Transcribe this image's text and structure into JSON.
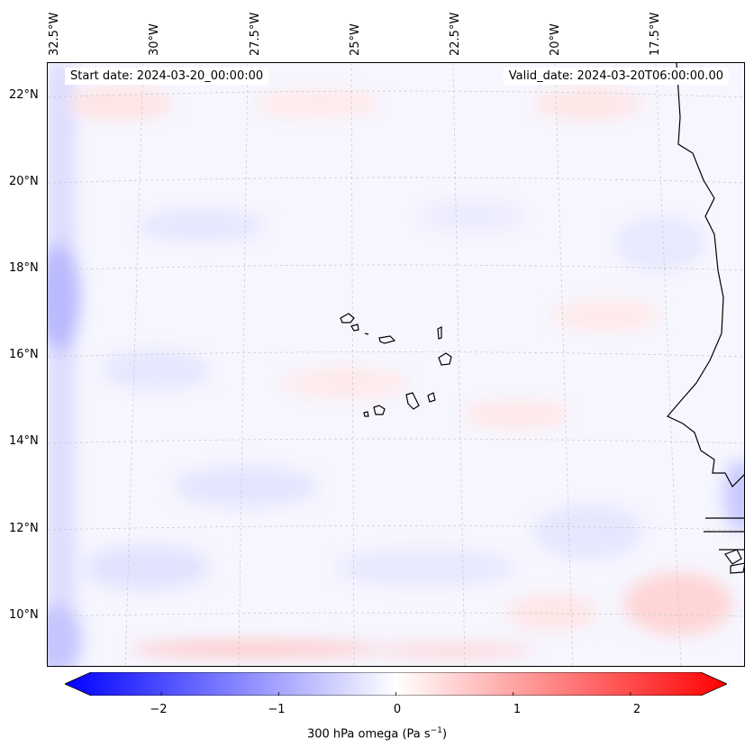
{
  "start_date": "Start date: 2024-03-20_00:00:00",
  "valid_date": "Valid_date: 2024-03-20T06:00:00.00",
  "lon_labels": [
    "32.5°W",
    "30°W",
    "27.5°W",
    "25°W",
    "22.5°W",
    "20°W",
    "17.5°W"
  ],
  "lat_labels": [
    "22°N",
    "20°N",
    "18°N",
    "16°N",
    "14°N",
    "12°N",
    "10°N"
  ],
  "colorbar": {
    "ticks": [
      "−2",
      "−1",
      "0",
      "1",
      "2"
    ],
    "title_main": "300 hPa omega (Pa s",
    "title_sup": "−1",
    "title_end": ")",
    "vmin": -2.6,
    "vmax": 2.6,
    "low_color": "#0000ff",
    "mid_color": "#ffffff",
    "high_color": "#ff0000"
  },
  "map": {
    "background_color": "#f6f6ff",
    "coastline_color": "#000000"
  }
}
